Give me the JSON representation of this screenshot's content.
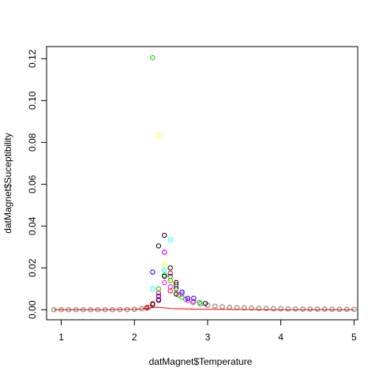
{
  "chart_data": {
    "type": "scatter",
    "xlabel": "datMagnet$Temperature",
    "ylabel": "datMagnet$Suceptibility",
    "xlim": [
      0.8,
      5.05
    ],
    "ylim": [
      -0.0048,
      0.1258
    ],
    "x_ticks": [
      1,
      2,
      3,
      4,
      5
    ],
    "y_ticks": [
      0.0,
      0.02,
      0.04,
      0.06,
      0.08,
      0.1,
      0.12
    ],
    "y_tick_labels": [
      "0.00",
      "0.02",
      "0.04",
      "0.06",
      "0.08",
      "0.10",
      "0.12"
    ],
    "grid": false,
    "legend": "none",
    "marker": "open-circle",
    "background_series": {
      "colors": [
        "#000000",
        "#ff0000",
        "#00cd00",
        "#0000ff",
        "#00ffff",
        "#ff00ff",
        "#ffff00",
        "#999999"
      ],
      "x": [
        0.9,
        1.0,
        1.1,
        1.2,
        1.3,
        1.4,
        1.5,
        1.6,
        1.7,
        1.8,
        1.9,
        2.0,
        2.1,
        2.2,
        2.6,
        2.7,
        2.8,
        2.9,
        3.0,
        3.1,
        3.2,
        3.3,
        3.4,
        3.5,
        3.6,
        3.7,
        3.8,
        3.9,
        4.0,
        4.1,
        4.2,
        4.3,
        4.4,
        4.5,
        4.6,
        4.7,
        4.8,
        4.9,
        5.0
      ],
      "y": [
        0.0,
        0.0,
        0.0,
        0.0,
        0.0,
        0.0,
        0.0,
        0.0,
        0.0,
        0.0001,
        0.0001,
        0.0002,
        0.0005,
        0.0012,
        0.007,
        0.005,
        0.0035,
        0.0028,
        0.0022,
        0.0017,
        0.0014,
        0.0012,
        0.001,
        0.0009,
        0.0008,
        0.0007,
        0.0006,
        0.0005,
        0.0005,
        0.0004,
        0.0004,
        0.0003,
        0.0003,
        0.0003,
        0.0003,
        0.0002,
        0.0002,
        0.0002,
        0.0002
      ]
    },
    "points": [
      {
        "x": 2.25,
        "y": 0.1205,
        "color": "#00cd00"
      },
      {
        "x": 2.33,
        "y": 0.0832,
        "color": "#ffff00"
      },
      {
        "x": 2.41,
        "y": 0.0356,
        "color": "#000000"
      },
      {
        "x": 2.49,
        "y": 0.0335,
        "color": "#00ffff"
      },
      {
        "x": 2.33,
        "y": 0.0305,
        "color": "#000000"
      },
      {
        "x": 2.41,
        "y": 0.0275,
        "color": "#0000ff"
      },
      {
        "x": 2.41,
        "y": 0.0275,
        "color": "#ff00ff"
      },
      {
        "x": 2.41,
        "y": 0.022,
        "color": "#ffff00"
      },
      {
        "x": 2.49,
        "y": 0.02,
        "color": "#000000"
      },
      {
        "x": 2.41,
        "y": 0.019,
        "color": "#00ffff"
      },
      {
        "x": 2.25,
        "y": 0.018,
        "color": "#0000ff"
      },
      {
        "x": 2.49,
        "y": 0.0175,
        "color": "#ff0000"
      },
      {
        "x": 2.41,
        "y": 0.0165,
        "color": "#00cd00"
      },
      {
        "x": 2.41,
        "y": 0.016,
        "color": "#000000"
      },
      {
        "x": 2.49,
        "y": 0.016,
        "color": "#0000ff"
      },
      {
        "x": 2.49,
        "y": 0.015,
        "color": "#ffff00"
      },
      {
        "x": 2.49,
        "y": 0.014,
        "color": "#00cd00"
      },
      {
        "x": 2.41,
        "y": 0.013,
        "color": "#ff00ff"
      },
      {
        "x": 2.57,
        "y": 0.013,
        "color": "#000000"
      },
      {
        "x": 2.57,
        "y": 0.012,
        "color": "#ff0000"
      },
      {
        "x": 2.49,
        "y": 0.011,
        "color": "#ff00ff"
      },
      {
        "x": 2.57,
        "y": 0.011,
        "color": "#00cd00"
      },
      {
        "x": 2.25,
        "y": 0.01,
        "color": "#00ffff"
      },
      {
        "x": 2.33,
        "y": 0.01,
        "color": "#00cd00"
      },
      {
        "x": 2.57,
        "y": 0.01,
        "color": "#0000ff"
      },
      {
        "x": 2.49,
        "y": 0.009,
        "color": "#ff0000"
      },
      {
        "x": 2.33,
        "y": 0.008,
        "color": "#ff0000"
      },
      {
        "x": 2.57,
        "y": 0.009,
        "color": "#ffff00"
      },
      {
        "x": 2.65,
        "y": 0.0085,
        "color": "#0000ff"
      },
      {
        "x": 2.65,
        "y": 0.0075,
        "color": "#ff00ff"
      },
      {
        "x": 2.57,
        "y": 0.0075,
        "color": "#000000"
      },
      {
        "x": 2.33,
        "y": 0.0065,
        "color": "#0000ff"
      },
      {
        "x": 2.33,
        "y": 0.005,
        "color": "#ff00ff"
      },
      {
        "x": 2.33,
        "y": 0.0045,
        "color": "#000000"
      },
      {
        "x": 2.65,
        "y": 0.006,
        "color": "#00cd00"
      },
      {
        "x": 2.73,
        "y": 0.0055,
        "color": "#0000ff"
      },
      {
        "x": 2.81,
        "y": 0.0055,
        "color": "#0000ff"
      },
      {
        "x": 2.73,
        "y": 0.0045,
        "color": "#ff00ff"
      },
      {
        "x": 2.81,
        "y": 0.004,
        "color": "#ff00ff"
      },
      {
        "x": 2.89,
        "y": 0.0035,
        "color": "#00cd00"
      },
      {
        "x": 2.97,
        "y": 0.003,
        "color": "#000000"
      },
      {
        "x": 2.25,
        "y": 0.003,
        "color": "#ff0000"
      },
      {
        "x": 2.25,
        "y": 0.0025,
        "color": "#000000"
      },
      {
        "x": 2.17,
        "y": 0.001,
        "color": "#000000"
      },
      {
        "x": 2.17,
        "y": 0.0008,
        "color": "#ff0000"
      }
    ],
    "line": {
      "color": "#ff0000",
      "x": [
        0.9,
        1.2,
        1.5,
        1.8,
        2.0,
        2.1,
        2.2,
        2.3,
        2.4,
        2.5,
        2.6,
        2.8,
        3.0,
        3.5,
        4.0,
        4.5,
        5.0
      ],
      "y": [
        0.0,
        0.0,
        0.0,
        0.0001,
        0.0002,
        0.0004,
        0.0009,
        0.0012,
        0.0009,
        0.0006,
        0.0005,
        0.0003,
        0.0002,
        0.0001,
        0.0,
        0.0,
        0.0
      ]
    }
  }
}
